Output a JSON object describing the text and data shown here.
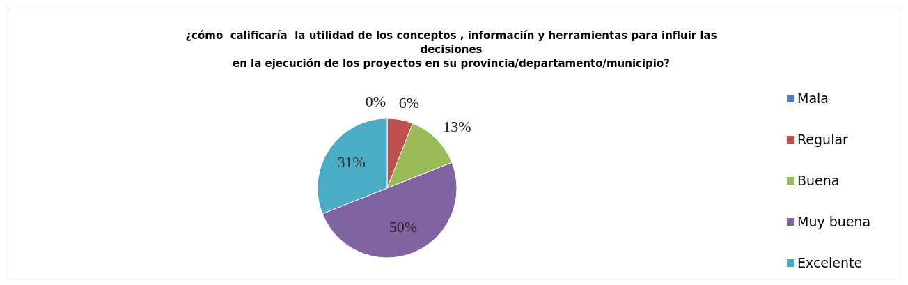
{
  "chart_data": {
    "type": "pie",
    "title": "¿cómo  calificaría  la utilidad de los conceptos , informaciín y herramientas para influir las decisiones\nen la ejecución de los proyectos en su provincia/departamento/municipio?",
    "categories": [
      "Mala",
      "Regular",
      "Buena",
      "Muy buena",
      "Excelente"
    ],
    "values": [
      0,
      6,
      13,
      50,
      31
    ],
    "colors": [
      "#4f81bd",
      "#c0504d",
      "#9bbb59",
      "#8064a2",
      "#4bacc6"
    ],
    "value_labels": [
      "0%",
      "6%",
      "13%",
      "50%",
      "31%"
    ],
    "legend": "right"
  }
}
